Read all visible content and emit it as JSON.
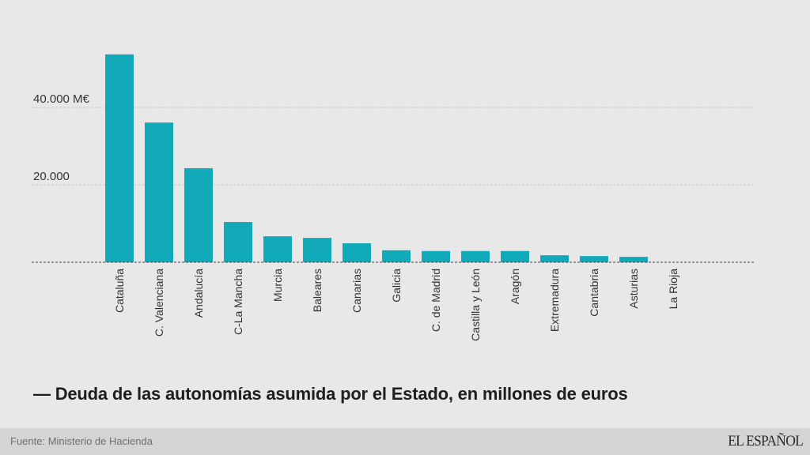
{
  "chart_data": {
    "type": "bar",
    "title": "— Deuda de las autonomías asumida por el Estado, en millones de euros",
    "xlabel": "",
    "ylabel": "",
    "ylim": [
      0,
      54000
    ],
    "y_ticks": [
      {
        "value": 20000,
        "label": "20.000"
      },
      {
        "value": 40000,
        "label": "40.000 M€"
      }
    ],
    "grid": true,
    "categories": [
      "Cataluña",
      "C. Valenciana",
      "Andalucía",
      "C-La Mancha",
      "Murcia",
      "Baleares",
      "Canarias",
      "Galicia",
      "C. de Madrid",
      "Castilla y León",
      "Aragón",
      "Extremadura",
      "Cantabria",
      "Asturias",
      "La Rioja"
    ],
    "values": [
      53700,
      36100,
      24300,
      10400,
      6700,
      6300,
      4900,
      3100,
      2900,
      2900,
      2900,
      1800,
      1600,
      1400,
      0
    ],
    "bar_color": "#12a9b8"
  },
  "footer": {
    "source": "Fuente: Ministerio de Hacienda",
    "brand": "EL ESPAÑOL"
  }
}
